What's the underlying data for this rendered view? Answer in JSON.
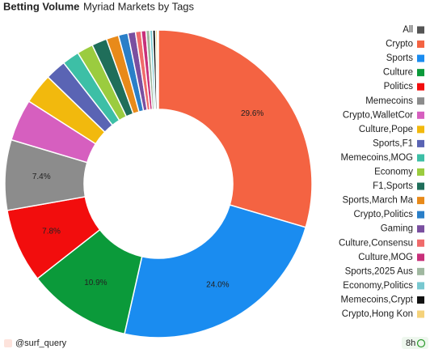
{
  "chart_data": {
    "type": "donut",
    "title": "Betting Volume",
    "subtitle": "Myriad Markets by Tags",
    "categories": [
      "All",
      "Crypto",
      "Sports",
      "Culture",
      "Politics",
      "Memecoins",
      "Crypto,WalletCor",
      "Culture,Pope",
      "Sports,F1",
      "Memecoins,MOG",
      "Economy",
      "F1,Sports",
      "Sports,March Ma",
      "Crypto,Politics",
      "Gaming",
      "Culture,Consensu",
      "Culture,MOG",
      "Sports,2025 Aus",
      "Economy,Politics",
      "Memecoins,Crypt",
      "Crypto,Hong Kon"
    ],
    "values": [
      0.1,
      29.6,
      24.0,
      10.9,
      7.8,
      7.4,
      4.4,
      3.2,
      2.2,
      1.8,
      1.7,
      1.6,
      1.3,
      1.0,
      0.8,
      0.6,
      0.5,
      0.4,
      0.3,
      0.3,
      0.2
    ],
    "value_labels": [
      null,
      "29.6%",
      "24.0%",
      "10.9%",
      "7.8%",
      "7.4%",
      null,
      null,
      null,
      null,
      null,
      null,
      null,
      null,
      null,
      null,
      null,
      null,
      null,
      null,
      null
    ],
    "colors": [
      "#555555",
      "#f46342",
      "#1a8cf0",
      "#0b9a3a",
      "#f20d0d",
      "#8c8c8c",
      "#d65fbf",
      "#f2b90d",
      "#5a64b4",
      "#3dbfa6",
      "#9bcc3f",
      "#1f6e5a",
      "#e88a1a",
      "#2a7fc8",
      "#7a4fa0",
      "#f06b6b",
      "#c8307a",
      "#a0b8a0",
      "#78c8d0",
      "#111111",
      "#f5d27a"
    ],
    "legend": "right"
  },
  "footer": {
    "handle": "@surf_query",
    "time": "8h"
  }
}
